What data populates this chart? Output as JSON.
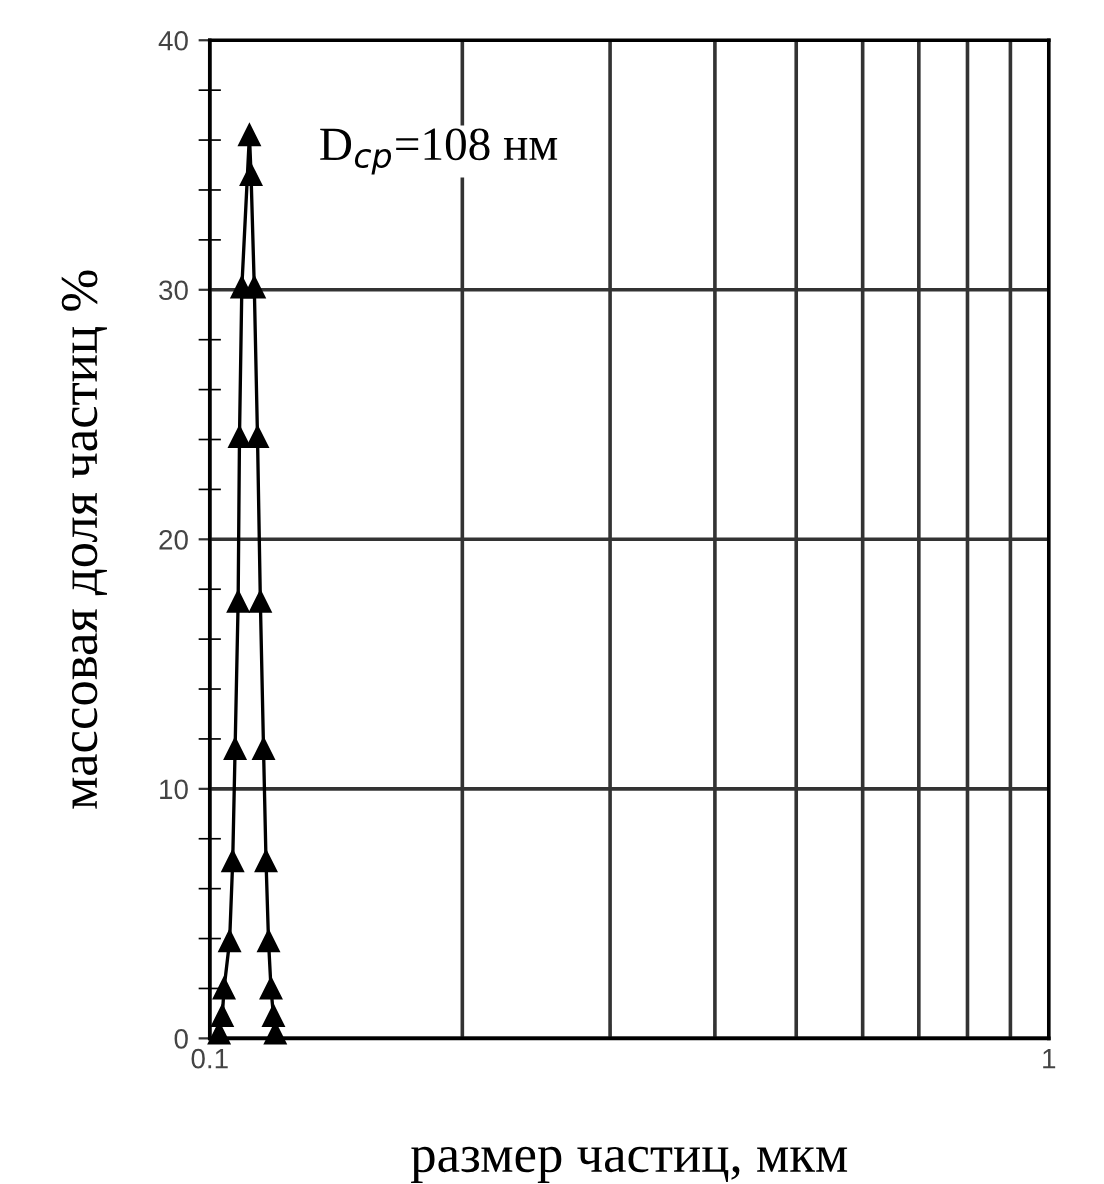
{
  "chart_data": {
    "type": "line",
    "xlabel": "размер частиц, мкм",
    "ylabel": "массовая доля частиц %",
    "annotations": [
      "D$_{ср}$=108 нм"
    ],
    "x": [
      0.1026,
      0.1035,
      0.104,
      0.1056,
      0.1065,
      0.1072,
      0.1081,
      0.1085,
      0.1092,
      0.1115,
      0.112,
      0.113,
      0.114,
      0.1149,
      0.1159,
      0.1167,
      0.1175,
      0.1183,
      0.1191,
      0.1197
    ],
    "series": [
      {
        "color": "#000000",
        "values": [
          0.2,
          0.9,
          2.0,
          3.9,
          7.1,
          11.6,
          17.5,
          24.1,
          30.1,
          36.2,
          34.6,
          30.1,
          24.1,
          17.5,
          11.6,
          7.1,
          3.9,
          2.0,
          0.9,
          0.2
        ]
      }
    ],
    "log": "x",
    "xlim": [
      0.1,
      1
    ],
    "ylim": [
      0,
      40
    ],
    "xticks": [
      0.1,
      {
        "value": 0.2,
        "label": null
      },
      {
        "value": 0.3,
        "label": null
      },
      {
        "value": 0.4,
        "label": null
      },
      {
        "value": 0.5,
        "label": null
      },
      {
        "value": 0.6,
        "label": null
      },
      {
        "value": 0.7,
        "label": null
      },
      {
        "value": 0.8,
        "label": null
      },
      {
        "value": 0.9,
        "label": null
      },
      1
    ],
    "yticks": [
      0,
      10,
      20,
      30,
      40
    ],
    "grid": true,
    "marker": "triangle",
    "line_style": "solid"
  }
}
